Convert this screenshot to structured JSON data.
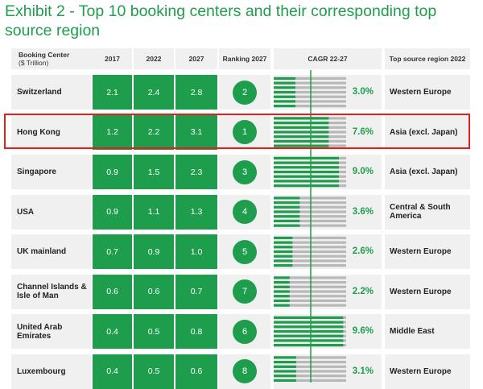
{
  "title": "Exhibit 2 - Top 10 booking centers and their corresponding top source region",
  "headers": {
    "booking_center": "Booking Center",
    "booking_center_unit": "($ Trillion)",
    "y2017": "2017",
    "y2022": "2022",
    "y2027": "2027",
    "ranking": "Ranking 2027",
    "cagr": "CAGR 22-27",
    "source": "Top source region 2022"
  },
  "colors": {
    "accent": "#1e9e4c",
    "highlight": "#e41e1e",
    "bar_empty": "#b8b8b8"
  },
  "highlighted_row": "Hong Kong",
  "chart_data": {
    "type": "table",
    "columns": [
      "Booking Center ($ Trillion)",
      "2017",
      "2022",
      "2027",
      "Ranking 2027",
      "CAGR 22-27",
      "Top source region 2022"
    ],
    "cagr_scale_max": 10,
    "rows": [
      {
        "name": "Switzerland",
        "v2017": "2.1",
        "v2022": "2.4",
        "v2027": "2.8",
        "rank": "2",
        "cagr": 3.0,
        "cagr_label": "3.0%",
        "source": "Western Europe"
      },
      {
        "name": "Hong Kong",
        "v2017": "1.2",
        "v2022": "2.2",
        "v2027": "3.1",
        "rank": "1",
        "cagr": 7.6,
        "cagr_label": "7.6%",
        "source": "Asia (excl. Japan)"
      },
      {
        "name": "Singapore",
        "v2017": "0.9",
        "v2022": "1.5",
        "v2027": "2.3",
        "rank": "3",
        "cagr": 9.0,
        "cagr_label": "9.0%",
        "source": "Asia (excl. Japan)"
      },
      {
        "name": "USA",
        "v2017": "0.9",
        "v2022": "1.1",
        "v2027": "1.3",
        "rank": "4",
        "cagr": 3.6,
        "cagr_label": "3.6%",
        "source": "Central & South America"
      },
      {
        "name": "UK mainland",
        "v2017": "0.7",
        "v2022": "0.9",
        "v2027": "1.0",
        "rank": "5",
        "cagr": 2.6,
        "cagr_label": "2.6%",
        "source": "Western Europe"
      },
      {
        "name": "Channel Islands & Isle of Man",
        "v2017": "0.6",
        "v2022": "0.6",
        "v2027": "0.7",
        "rank": "7",
        "cagr": 2.2,
        "cagr_label": "2.2%",
        "source": "Western Europe"
      },
      {
        "name": "United Arab Emirates",
        "v2017": "0.4",
        "v2022": "0.5",
        "v2027": "0.8",
        "rank": "6",
        "cagr": 9.6,
        "cagr_label": "9.6%",
        "source": "Middle East"
      },
      {
        "name": "Luxembourg",
        "v2017": "0.4",
        "v2022": "0.5",
        "v2027": "0.6",
        "rank": "8",
        "cagr": 3.1,
        "cagr_label": "3.1%",
        "source": "Western Europe"
      }
    ]
  }
}
